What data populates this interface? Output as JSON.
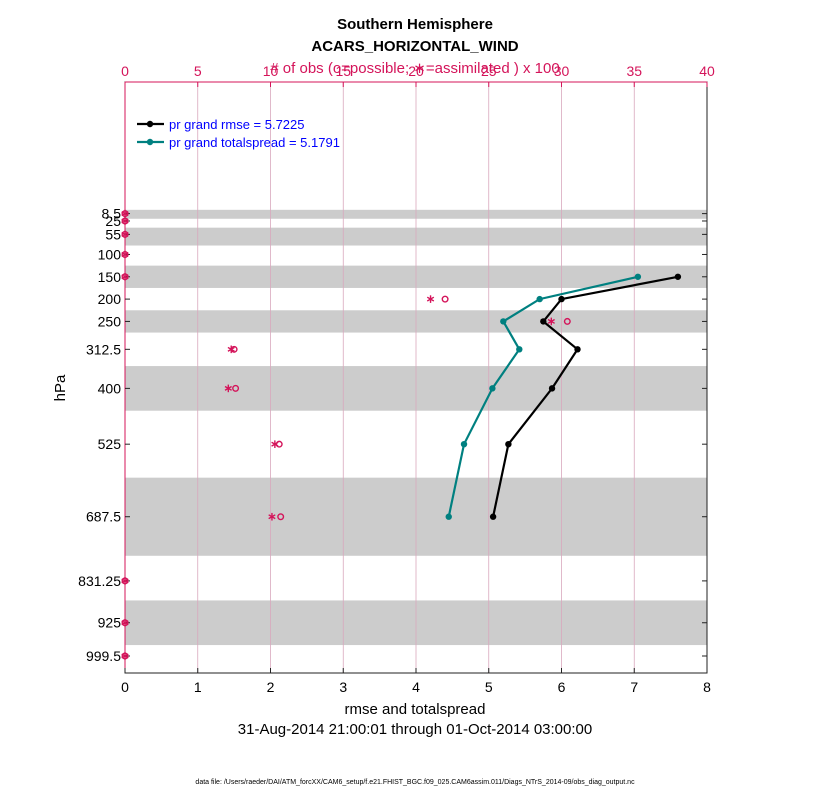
{
  "chart_data": {
    "type": "line",
    "title": "Southern Hemisphere",
    "subtitle": "ACARS_HORIZONTAL_WIND",
    "top_axis_label": "# of obs (o=possible; ∗=assimilated ) x 100",
    "xlabel": "rmse and totalspread",
    "ylabel": "hPa",
    "date_range": "31-Aug-2014 21:00:01 through 01-Oct-2014 03:00:00",
    "footnote": "data file: /Users/raeder/DAI/ATM_forcXX/CAM6_setup/f.e21.FHIST_BGC.f09_025.CAM6assim.011/Diags_NTrS_2014-09/obs_diag_output.nc",
    "xlim": [
      0,
      8
    ],
    "x_ticks": [
      "0",
      "1",
      "2",
      "3",
      "4",
      "5",
      "6",
      "7",
      "8"
    ],
    "top_xlim": [
      0,
      40
    ],
    "top_ticks": [
      "0",
      "5",
      "10",
      "15",
      "20",
      "25",
      "30",
      "35",
      "40"
    ],
    "levels": [
      8.5,
      25,
      55,
      100,
      150,
      200,
      250,
      312.5,
      400,
      525,
      687.5,
      831.25,
      925,
      999.5
    ],
    "level_labels": [
      "8.5",
      "25",
      "55",
      "100",
      "150",
      "200",
      "250",
      "312.5",
      "400",
      "525",
      "687.5",
      "831.25",
      "925",
      "999.5"
    ],
    "layer_bands_hPa": [
      [
        0,
        20
      ],
      [
        40,
        80
      ],
      [
        125,
        175
      ],
      [
        225,
        275
      ],
      [
        350,
        450
      ],
      [
        600,
        775
      ],
      [
        875,
        975
      ]
    ],
    "series": [
      {
        "name": "pr grand rmse = 5.7225",
        "color": "#000000",
        "levels": [
          150,
          200,
          250,
          312.5,
          400,
          525,
          687.5
        ],
        "values": [
          7.6,
          6.0,
          5.75,
          6.22,
          5.87,
          5.27,
          5.06
        ]
      },
      {
        "name": "pr grand totalspread = 5.1791",
        "color": "#008080",
        "levels": [
          150,
          200,
          250,
          312.5,
          400,
          525,
          687.5
        ],
        "values": [
          7.05,
          5.7,
          5.2,
          5.42,
          5.05,
          4.66,
          4.45
        ]
      }
    ],
    "obs_possible": {
      "color": "#d4145a",
      "levels": [
        8.5,
        25,
        55,
        100,
        150,
        200,
        250,
        312.5,
        400,
        525,
        687.5,
        831.25,
        925,
        999.5
      ],
      "values": [
        0,
        0,
        0,
        0,
        0,
        22.0,
        30.4,
        7.5,
        7.6,
        10.6,
        10.7,
        0,
        0,
        0
      ]
    },
    "obs_assimilated": {
      "color": "#d4145a",
      "levels": [
        8.5,
        25,
        55,
        100,
        150,
        200,
        250,
        312.5,
        400,
        525,
        687.5,
        831.25,
        925,
        999.5
      ],
      "values": [
        0,
        0,
        0,
        0,
        0,
        21.0,
        29.3,
        7.3,
        7.1,
        10.3,
        10.1,
        0,
        0,
        0
      ]
    }
  }
}
